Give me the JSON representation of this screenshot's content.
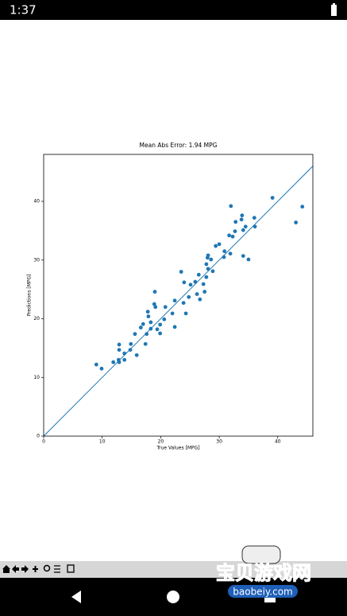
{
  "status_bar": {
    "time": "1:37"
  },
  "chart_data": {
    "type": "scatter",
    "title": "Mean Abs Error: 1.94 MPG",
    "x_label": "True Values [MPG]",
    "y_label": "Predictions [MPG]",
    "series": [
      {
        "color": "#1f77b4",
        "x": [
          9.0,
          9.9,
          11.9,
          12.8,
          12.9,
          12.9,
          12.9,
          13.8,
          13.8,
          14.8,
          14.9,
          15.9,
          15.6,
          16.6,
          17.0,
          17.4,
          17.6,
          17.9,
          17.8,
          18.3,
          18.3,
          18.9,
          19.0,
          19.1,
          19.4,
          19.9,
          19.9,
          20.6,
          20.8,
          22.0,
          22.4,
          22.4,
          23.5,
          23.9,
          24.0,
          24.3,
          24.8,
          25.1,
          25.9,
          26.2,
          26.5,
          26.7,
          27.3,
          27.5,
          27.8,
          27.8,
          28.0,
          28.1,
          28.1,
          28.6,
          28.9,
          29.4,
          30.0,
          30.8,
          30.9,
          31.7,
          31.9,
          32.0,
          32.3,
          32.7,
          32.8,
          33.8,
          33.9,
          34.1,
          34.1,
          34.5,
          35.0,
          36.0,
          36.1,
          39.1,
          43.1,
          44.2
        ],
        "values": [
          12.2,
          11.5,
          12.6,
          13.0,
          12.6,
          14.7,
          15.6,
          13.0,
          14.1,
          14.7,
          15.7,
          13.8,
          17.4,
          18.5,
          19.1,
          15.7,
          17.4,
          20.4,
          21.2,
          18.3,
          19.4,
          22.5,
          24.6,
          22.0,
          18.2,
          17.5,
          19.0,
          19.9,
          22.0,
          20.9,
          18.6,
          23.1,
          28.0,
          22.7,
          26.2,
          20.9,
          23.7,
          25.8,
          26.3,
          24.2,
          27.5,
          23.3,
          25.9,
          24.6,
          27.1,
          29.3,
          30.4,
          30.8,
          28.5,
          30.1,
          28.1,
          32.4,
          32.7,
          30.5,
          31.5,
          34.2,
          31.1,
          39.2,
          34.0,
          34.9,
          36.5,
          36.9,
          37.6,
          35.1,
          30.7,
          35.7,
          30.1,
          37.2,
          35.7,
          40.6,
          36.4,
          39.1
        ]
      }
    ],
    "line_color": "#1f77b4",
    "xlim": [
      0,
      46
    ],
    "ylim": [
      0,
      48
    ],
    "xticks": [
      0,
      10,
      20,
      30,
      40
    ],
    "yticks": [
      0,
      10,
      20,
      30,
      40
    ]
  },
  "watermark": {
    "title": "宝贝游戏网",
    "url": "baobeiy.com"
  }
}
